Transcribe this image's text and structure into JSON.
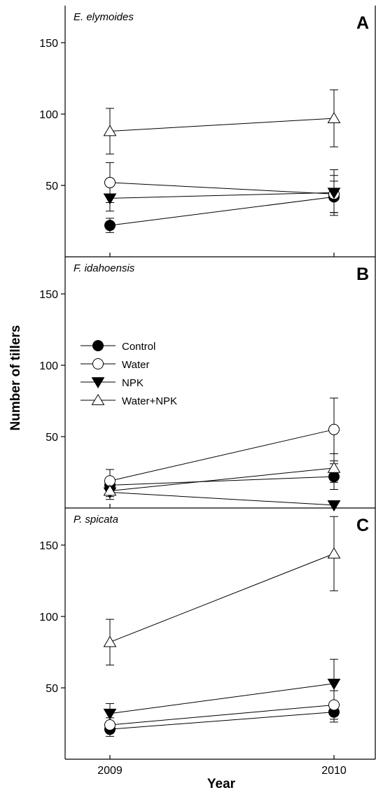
{
  "chart_data": {
    "type": "line",
    "ylabel": "Number of tillers",
    "xlabel": "Year",
    "x": [
      "2009",
      "2010"
    ],
    "yticks": [
      50,
      100,
      150
    ],
    "ylim": [
      0,
      175
    ],
    "grid": false,
    "legend": {
      "placement": "upper-left of panel B",
      "entries": [
        {
          "name": "Control",
          "marker": "filled-circle"
        },
        {
          "name": "Water",
          "marker": "open-circle"
        },
        {
          "name": "NPK",
          "marker": "filled-triangle-down"
        },
        {
          "name": "Water+NPK",
          "marker": "open-triangle-up"
        }
      ]
    },
    "panels": [
      {
        "letter": "A",
        "species": "E. elymoides",
        "series": [
          {
            "name": "Control",
            "values": [
              22,
              42
            ],
            "err_low": [
              5,
              11
            ],
            "err_high": [
              5,
              11
            ]
          },
          {
            "name": "Water",
            "values": [
              52,
              44
            ],
            "err_low": [
              14,
              13
            ],
            "err_high": [
              14,
              13
            ]
          },
          {
            "name": "NPK",
            "values": [
              41,
              45
            ],
            "err_low": [
              9,
              16
            ],
            "err_high": [
              9,
              16
            ]
          },
          {
            "name": "Water+NPK",
            "values": [
              88,
              97
            ],
            "err_low": [
              16,
              20
            ],
            "err_high": [
              16,
              20
            ]
          }
        ]
      },
      {
        "letter": "B",
        "species": "F. idahoensis",
        "series": [
          {
            "name": "Control",
            "values": [
              16,
              22
            ],
            "err_low": [
              5,
              9
            ],
            "err_high": [
              5,
              9
            ]
          },
          {
            "name": "Water",
            "values": [
              19,
              55
            ],
            "err_low": [
              8,
              22
            ],
            "err_high": [
              8,
              22
            ]
          },
          {
            "name": "NPK",
            "values": [
              11,
              2
            ],
            "err_low": [
              5,
              0
            ],
            "err_high": [
              5,
              0
            ]
          },
          {
            "name": "Water+NPK",
            "values": [
              12,
              28
            ],
            "err_low": [
              4,
              10
            ],
            "err_high": [
              4,
              10
            ]
          }
        ]
      },
      {
        "letter": "C",
        "species": "P. spicata",
        "series": [
          {
            "name": "Control",
            "values": [
              21,
              33
            ],
            "err_low": [
              5,
              7
            ],
            "err_high": [
              5,
              7
            ]
          },
          {
            "name": "Water",
            "values": [
              24,
              38
            ],
            "err_low": [
              5,
              10
            ],
            "err_high": [
              5,
              10
            ]
          },
          {
            "name": "NPK",
            "values": [
              32,
              53
            ],
            "err_low": [
              7,
              17
            ],
            "err_high": [
              7,
              17
            ]
          },
          {
            "name": "Water+NPK",
            "values": [
              82,
              144
            ],
            "err_low": [
              16,
              26
            ],
            "err_high": [
              16,
              26
            ]
          }
        ]
      }
    ]
  },
  "colors": {
    "ink": "#000000",
    "background": "#ffffff"
  }
}
